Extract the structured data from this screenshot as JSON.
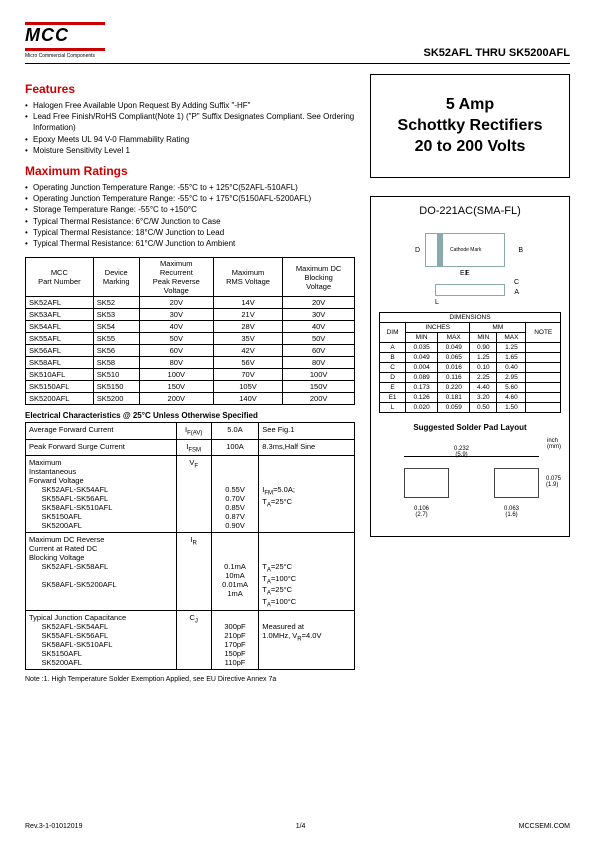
{
  "header": {
    "logo": "MCC",
    "logo_sub": "Micro Commercial Components",
    "logo_line_color": "#c00",
    "title_right": "SK52AFL  THRU  SK5200AFL"
  },
  "features": {
    "heading": "Features",
    "items": [
      "Halogen Free Available Upon Request By Adding Suffix \"-HF\"",
      "Lead Free Finish/RoHS Compliant(Note 1) (\"P\" Suffix Designates Compliant. See Ordering Information)",
      "Epoxy Meets UL 94 V-0 Flammability Rating",
      "Moisture Sensitivity Level 1"
    ]
  },
  "max_ratings": {
    "heading": "Maximum Ratings",
    "items": [
      "Operating Junction Temperature Range: -55°C to + 125°C(52AFL-510AFL)",
      "Operating Junction Temperature Range: -55°C to + 175°C(5150AFL-5200AFL)",
      "Storage Temperature Range: -55°C to +150°C",
      "Typical Thermal Resistance: 6°C/W Junction to Case",
      "Typical Thermal Resistance: 18°C/W Junction to Lead",
      "Typical Thermal Resistance: 61°C/W Junction to Ambient"
    ]
  },
  "big_title": {
    "l1": "5 Amp",
    "l2": "Schottky Rectifiers",
    "l3": "20 to 200 Volts"
  },
  "table1": {
    "headers": [
      "MCC\nPart Number",
      "Device\nMarking",
      "Maximum\nRecurrent\nPeak Reverse\nVoltage",
      "Maximum\nRMS Voltage",
      "Maximum DC\nBlocking\nVoltage"
    ],
    "rows": [
      [
        "SK52AFL",
        "SK52",
        "20V",
        "14V",
        "20V"
      ],
      [
        "SK53AFL",
        "SK53",
        "30V",
        "21V",
        "30V"
      ],
      [
        "SK54AFL",
        "SK54",
        "40V",
        "28V",
        "40V"
      ],
      [
        "SK55AFL",
        "SK55",
        "50V",
        "35V",
        "50V"
      ],
      [
        "SK56AFL",
        "SK56",
        "60V",
        "42V",
        "60V"
      ],
      [
        "SK58AFL",
        "SK58",
        "80V",
        "56V",
        "80V"
      ],
      [
        "SK510AFL",
        "SK510",
        "100V",
        "70V",
        "100V"
      ],
      [
        "SK5150AFL",
        "SK5150",
        "150V",
        "105V",
        "150V"
      ],
      [
        "SK5200AFL",
        "SK5200",
        "200V",
        "140V",
        "200V"
      ]
    ]
  },
  "elec_title": "Electrical Characteristics @ 25°C Unless Otherwise Specified",
  "elec": {
    "r1": {
      "p": "Average Forward Current",
      "s": "I_F(AV)",
      "v": "5.0A",
      "c": "See Fig.1"
    },
    "r2": {
      "p": "Peak Forward Surge Current",
      "s": "I_FSM",
      "v": "100A",
      "c": "8.3ms,Half Sine"
    },
    "r3": {
      "p": "Maximum\nInstantaneous\nForward Voltage",
      "parts": [
        "SK52AFL-SK54AFL",
        "SK55AFL-SK56AFL",
        "SK58AFL-SK510AFL",
        "SK5150AFL",
        "SK5200AFL"
      ],
      "s": "V_F",
      "vals": [
        "0.55V",
        "0.70V",
        "0.85V",
        "0.87V",
        "0.90V"
      ],
      "c": "I_FM=5.0A;\nT_A=25°C"
    },
    "r4": {
      "p": "Maximum DC Reverse\nCurrent at  Rated DC\nBlocking Voltage",
      "parts": [
        "SK52AFL-SK58AFL",
        "",
        "SK58AFL-SK5200AFL",
        ""
      ],
      "s": "I_R",
      "vals": [
        "0.1mA",
        "10mA",
        "0.01mA",
        "1mA"
      ],
      "conds": [
        "T_A=25°C",
        "T_A=100°C",
        "T_A=25°C",
        "T_A=100°C"
      ]
    },
    "r5": {
      "p": "Typical Junction Capacitance",
      "parts": [
        "SK52AFL-SK54AFL",
        "SK55AFL-SK56AFL",
        "SK58AFL-SK510AFL",
        "SK5150AFL",
        "SK5200AFL"
      ],
      "s": "C_J",
      "vals": [
        "300pF",
        "210pF",
        "170pF",
        "150pF",
        "110pF"
      ],
      "c": "Measured at\n1.0MHz, V_R=4.0V"
    }
  },
  "note": "Note :1. High Temperature Solder Exemption Applied, see EU Directive Annex  7a",
  "package": {
    "title": "DO-221AC(SMA-FL)",
    "cathode_label": "Cathode Mark",
    "labels": {
      "D": "D",
      "B": "B",
      "E": "E",
      "E1": "E1",
      "C": "C",
      "A": "A",
      "L": "L"
    }
  },
  "dim_table": {
    "title": "DIMENSIONS",
    "head_dim": "DIM",
    "head_in": "INCHES",
    "head_mm": "MM",
    "head_note": "NOTE",
    "sub": [
      "MIN",
      "MAX",
      "MIN",
      "MAX"
    ],
    "rows": [
      [
        "A",
        "0.035",
        "0.049",
        "0.90",
        "1.25"
      ],
      [
        "B",
        "0.049",
        "0.065",
        "1.25",
        "1.65"
      ],
      [
        "C",
        "0.004",
        "0.016",
        "0.10",
        "0.40"
      ],
      [
        "D",
        "0.089",
        "0.116",
        "2.25",
        "2.95"
      ],
      [
        "E",
        "0.173",
        "0.220",
        "4.40",
        "5.60"
      ],
      [
        "E1",
        "0.126",
        "0.181",
        "3.20",
        "4.60"
      ],
      [
        "L",
        "0.020",
        "0.059",
        "0.50",
        "1.50"
      ]
    ]
  },
  "solder": {
    "title": "Suggested Solder Pad Layout",
    "unit": "inch\n(mm)",
    "dim_w": "0.232\n(5.9)",
    "dim_h": "0.075\n(1.9)",
    "dim_l": "0.106\n(2.7)",
    "dim_r": "0.063\n(1.6)"
  },
  "footer": {
    "left": "Rev.3-1-01012019",
    "center": "1/4",
    "right": "MCCSEMI.COM"
  },
  "colors": {
    "accent": "#c00",
    "pkg": "#8aa",
    "text": "#000"
  }
}
